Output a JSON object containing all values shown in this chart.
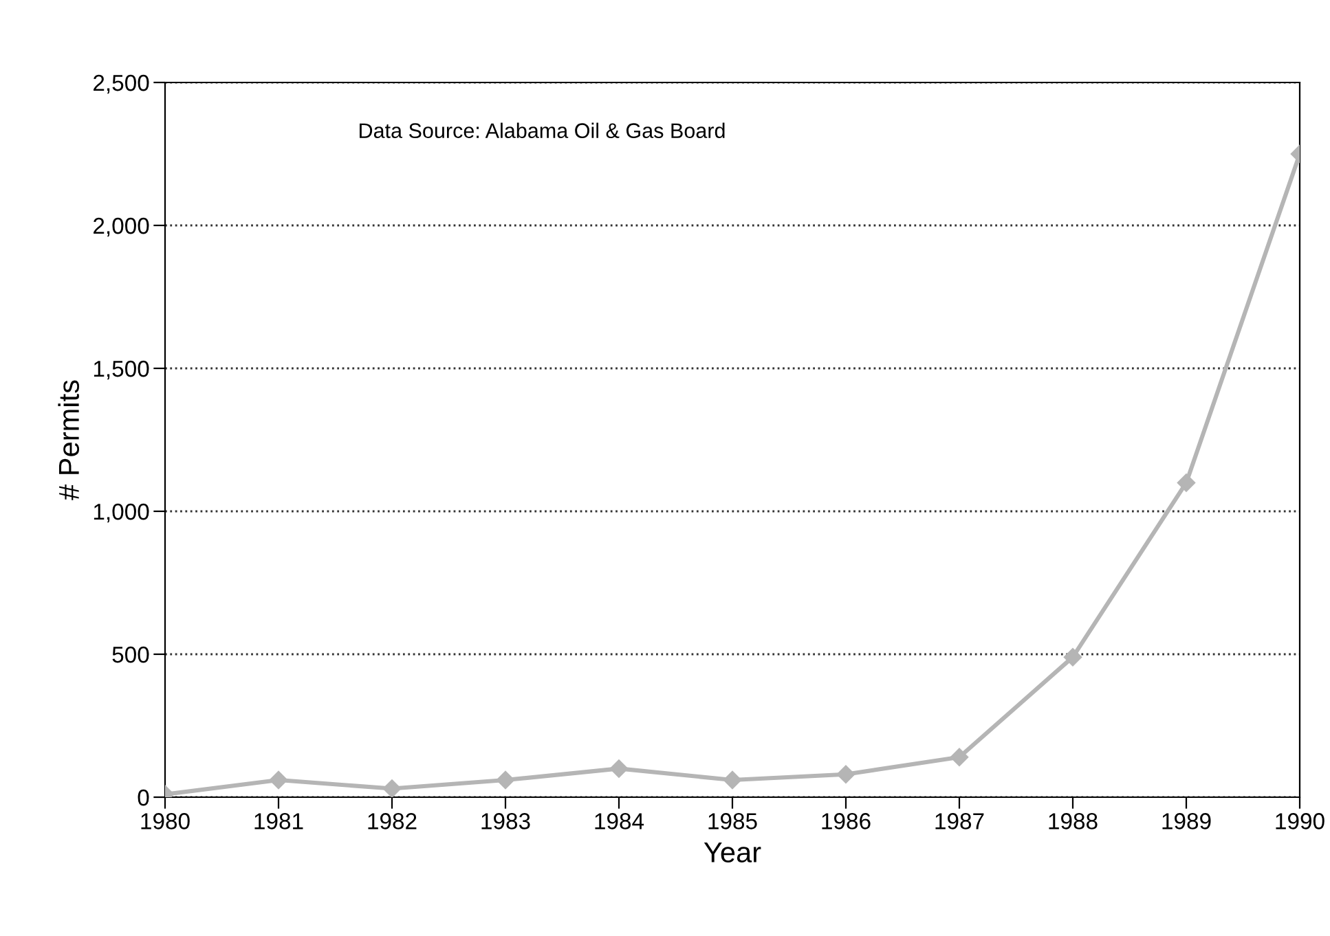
{
  "chart_data": {
    "type": "line",
    "xlabel": "Year",
    "ylabel": "# Permits",
    "categories": [
      "1980",
      "1981",
      "1982",
      "1983",
      "1984",
      "1985",
      "1986",
      "1987",
      "1988",
      "1989",
      "1990"
    ],
    "series": [
      {
        "color": "#b5b5b5",
        "values": [
          10,
          60,
          30,
          60,
          100,
          60,
          80,
          140,
          490,
          1100,
          2250
        ]
      }
    ],
    "ylim": [
      0,
      2500
    ],
    "yticks": [
      {
        "value": 0,
        "label": "0"
      },
      {
        "value": 500,
        "label": "500"
      },
      {
        "value": 1000,
        "label": "1,000"
      },
      {
        "value": 1500,
        "label": "1,500"
      },
      {
        "value": 2000,
        "label": "2,000"
      },
      {
        "value": 2500,
        "label": "2,500"
      }
    ],
    "grid": "y",
    "marker": "diamond",
    "line_style": "solid",
    "annotations": [
      "Data Source: Alabama Oil & Gas Board"
    ]
  }
}
